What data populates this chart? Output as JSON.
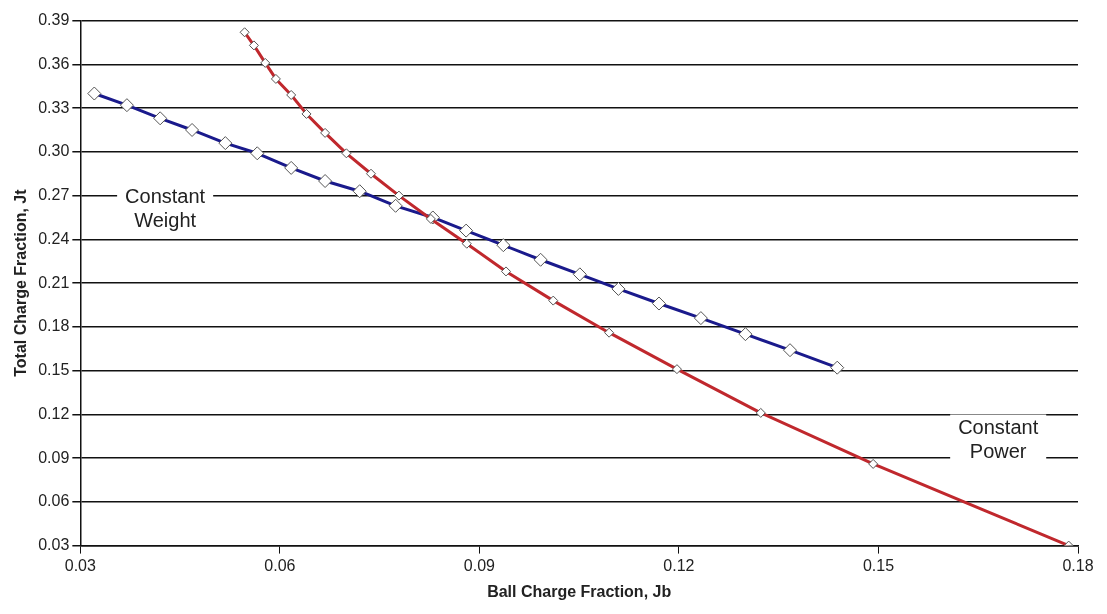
{
  "chart_data": {
    "type": "line",
    "xlabel": "Ball Charge Fraction, Jb",
    "ylabel": "Total Charge Fraction, Jt",
    "xlim": [
      0.03,
      0.18
    ],
    "xticks": [
      0.03,
      0.06,
      0.09,
      0.12,
      0.15,
      0.18
    ],
    "ylim": [
      0.03,
      0.39
    ],
    "yticks": [
      0.03,
      0.06,
      0.09,
      0.12,
      0.15,
      0.18,
      0.21,
      0.24,
      0.27,
      {
        "value": 0.3,
        "label": "0.30"
      },
      0.33,
      0.36,
      0.39
    ],
    "grid": "y",
    "legend": false,
    "marker": "diamond",
    "line_style": "solid",
    "series": [
      {
        "color": "#1a1a8c",
        "x": [
          0.0321,
          0.037,
          0.042,
          0.0468,
          0.0518,
          0.0566,
          0.0617,
          0.0668,
          0.072,
          0.0774,
          0.083,
          0.088,
          0.0936,
          0.0992,
          0.1051,
          0.1109,
          0.117,
          0.1233,
          0.13,
          0.1367,
          0.1438
        ],
        "values": [
          0.34,
          0.332,
          0.323,
          0.315,
          0.306,
          0.299,
          0.289,
          0.28,
          0.273,
          0.263,
          0.255,
          0.246,
          0.236,
          0.226,
          0.216,
          0.206,
          0.196,
          0.186,
          0.175,
          0.164,
          0.152
        ]
      },
      {
        "color": "#c0282d",
        "x": [
          0.0547,
          0.0561,
          0.0578,
          0.0594,
          0.0617,
          0.064,
          0.0668,
          0.07,
          0.0737,
          0.0779,
          0.0827,
          0.0881,
          0.094,
          0.1011,
          0.1095,
          0.1197,
          0.1323,
          0.1492,
          0.1786
        ],
        "values": [
          0.382,
          0.373,
          0.361,
          0.35,
          0.339,
          0.326,
          0.313,
          0.299,
          0.285,
          0.27,
          0.254,
          0.237,
          0.218,
          0.198,
          0.176,
          0.151,
          0.121,
          0.086,
          0.03
        ]
      }
    ],
    "annotations": [
      "Constant\nWeight",
      "Constant\nPower"
    ]
  }
}
